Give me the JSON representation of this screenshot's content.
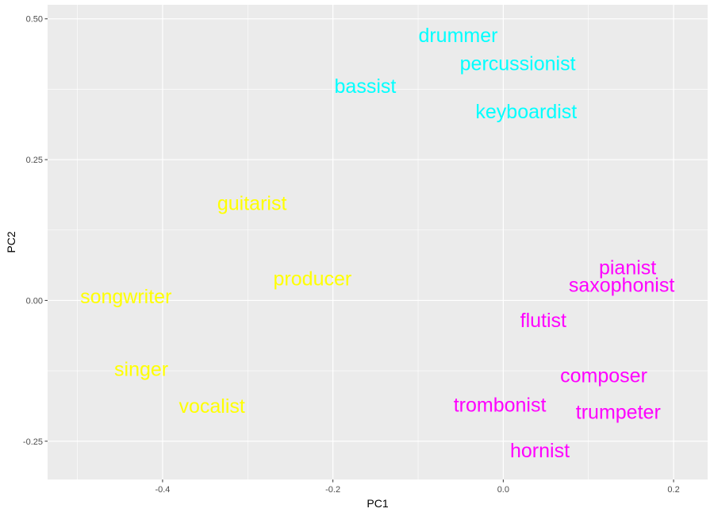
{
  "chart_data": {
    "type": "scatter",
    "title": "",
    "xlabel": "PC1",
    "ylabel": "PC2",
    "xlim": [
      -0.535,
      0.24
    ],
    "ylim": [
      -0.318,
      0.525
    ],
    "x_ticks": [
      -0.4,
      -0.2,
      0.0,
      0.2
    ],
    "x_tick_labels": [
      "-0.4",
      "-0.2",
      "0.0",
      "0.2"
    ],
    "y_ticks": [
      -0.25,
      0.0,
      0.25,
      0.5
    ],
    "y_tick_labels": [
      "-0.25",
      "0.00",
      "0.25",
      "0.50"
    ],
    "grid": true,
    "legend": "none",
    "panel_background": "#ebebeb",
    "grid_color": "#ffffff",
    "colors": {
      "cyan": "#00ffff",
      "yellow": "#ffff00",
      "magenta": "#ff00ff"
    },
    "points": [
      {
        "label": "drummer",
        "x": -0.053,
        "y": 0.47,
        "color": "#00ffff"
      },
      {
        "label": "percussionist",
        "x": 0.017,
        "y": 0.42,
        "color": "#00ffff"
      },
      {
        "label": "bassist",
        "x": -0.162,
        "y": 0.38,
        "color": "#00ffff"
      },
      {
        "label": "keyboardist",
        "x": 0.027,
        "y": 0.335,
        "color": "#00ffff"
      },
      {
        "label": "guitarist",
        "x": -0.295,
        "y": 0.172,
        "color": "#ffff00"
      },
      {
        "label": "producer",
        "x": -0.224,
        "y": 0.038,
        "color": "#ffff00"
      },
      {
        "label": "songwriter",
        "x": -0.443,
        "y": 0.006,
        "color": "#ffff00"
      },
      {
        "label": "singer",
        "x": -0.425,
        "y": -0.123,
        "color": "#ffff00"
      },
      {
        "label": "vocalist",
        "x": -0.342,
        "y": -0.188,
        "color": "#ffff00"
      },
      {
        "label": "pianist",
        "x": 0.146,
        "y": 0.058,
        "color": "#ff00ff"
      },
      {
        "label": "saxophonist",
        "x": 0.139,
        "y": 0.027,
        "color": "#ff00ff"
      },
      {
        "label": "flutist",
        "x": 0.047,
        "y": -0.036,
        "color": "#ff00ff"
      },
      {
        "label": "composer",
        "x": 0.118,
        "y": -0.134,
        "color": "#ff00ff"
      },
      {
        "label": "trombonist",
        "x": -0.004,
        "y": -0.186,
        "color": "#ff00ff"
      },
      {
        "label": "trumpeter",
        "x": 0.135,
        "y": -0.199,
        "color": "#ff00ff"
      },
      {
        "label": "hornist",
        "x": 0.043,
        "y": -0.267,
        "color": "#ff00ff"
      }
    ]
  }
}
